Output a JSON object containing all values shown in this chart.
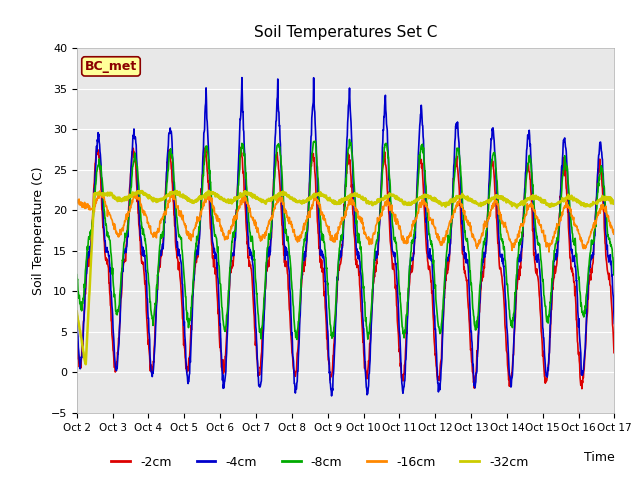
{
  "title": "Soil Temperatures Set C",
  "xlabel": "Time",
  "ylabel": "Soil Temperature (C)",
  "ylim": [
    -5,
    40
  ],
  "yticks": [
    -5,
    0,
    5,
    10,
    15,
    20,
    25,
    30,
    35,
    40
  ],
  "figure_bg": "#ffffff",
  "plot_bg": "#e8e8e8",
  "annotation_text": "BC_met",
  "annotation_bg": "#ffff99",
  "annotation_border": "#8B0000",
  "legend_labels": [
    "-2cm",
    "-4cm",
    "-8cm",
    "-16cm",
    "-32cm"
  ],
  "line_colors": [
    "#dd0000",
    "#0000cc",
    "#00aa00",
    "#ff8800",
    "#cccc00"
  ],
  "line_widths": [
    1.2,
    1.2,
    1.2,
    1.2,
    1.8
  ],
  "n_days": 15,
  "spd": 96,
  "start_day": 2,
  "grid_color": "#ffffff"
}
